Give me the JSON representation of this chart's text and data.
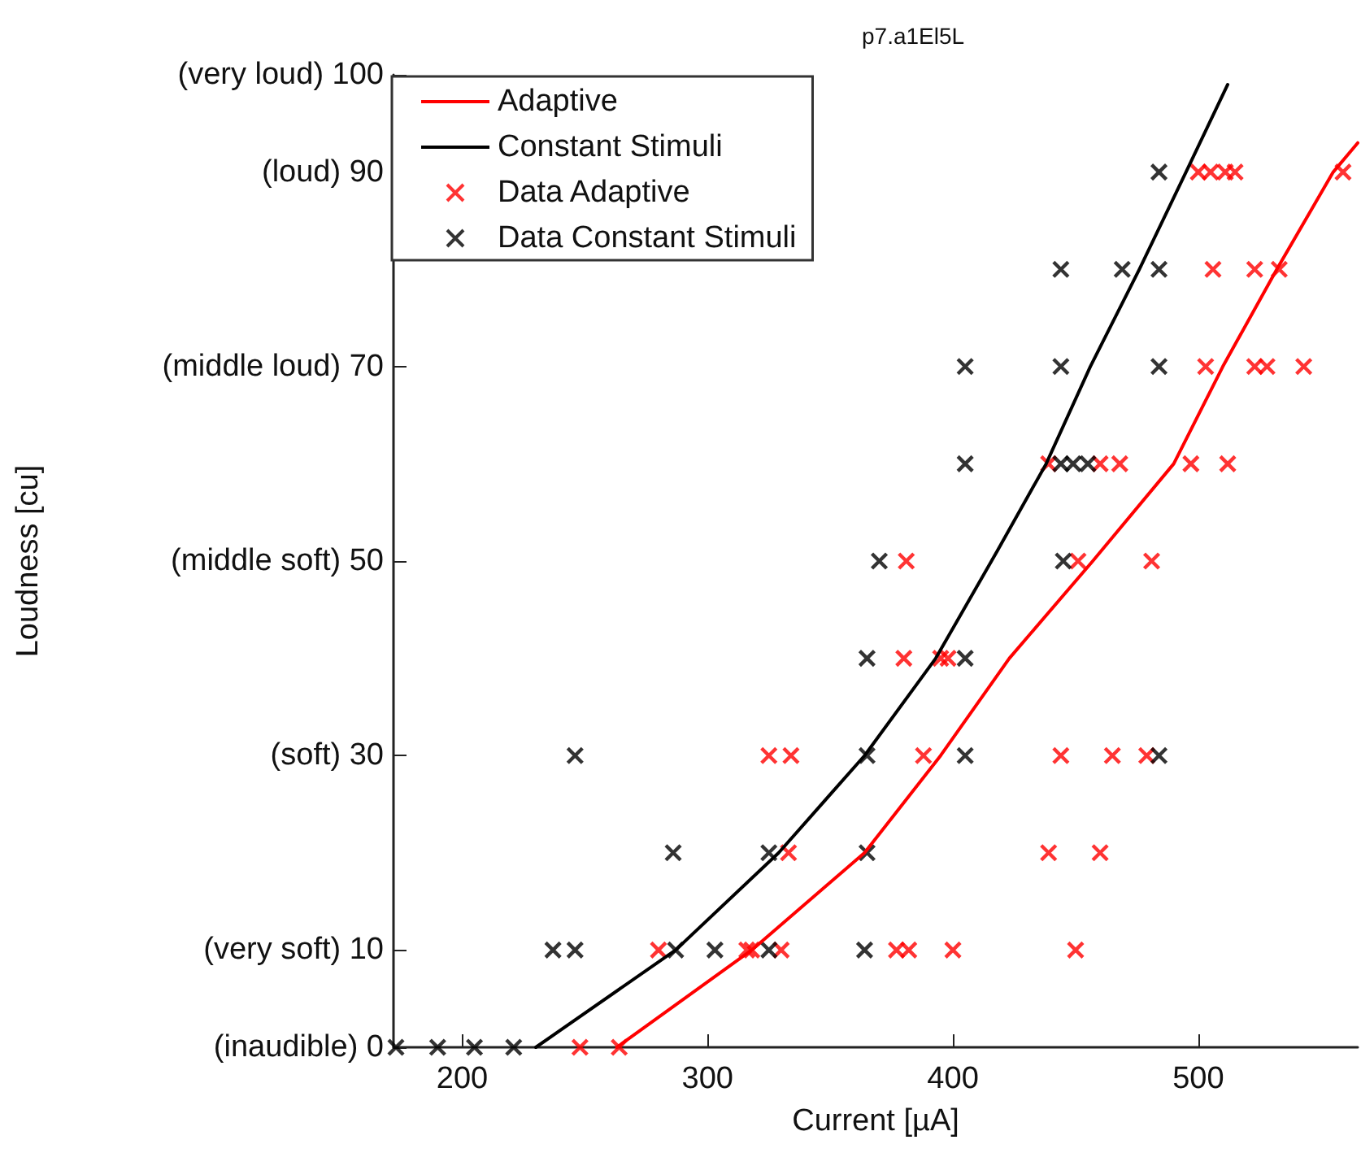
{
  "chart_data": {
    "type": "scatter",
    "title": "p7.a1El5L",
    "xlabel": "Current [µA]",
    "ylabel": "Loudness [cu]",
    "xlim": [
      172,
      565
    ],
    "xticks": [
      200,
      300,
      400,
      500
    ],
    "ylim": [
      0,
      100
    ],
    "yticks": [
      {
        "value": 0,
        "label": "(inaudible) 0"
      },
      {
        "value": 10,
        "label": "(very soft) 10"
      },
      {
        "value": 30,
        "label": "(soft) 30"
      },
      {
        "value": 50,
        "label": "(middle soft) 50"
      },
      {
        "value": 70,
        "label": "(middle loud) 70"
      },
      {
        "value": 90,
        "label": "(loud) 90"
      },
      {
        "value": 100,
        "label": "(very loud) 100"
      }
    ],
    "legend": "top left",
    "grid": false,
    "series": [
      {
        "name": "Adaptive",
        "type": "line",
        "marker": "none",
        "color": "#ff0000",
        "x": [
          263,
          318,
          364,
          395,
          423,
          457,
          490,
          510,
          532,
          555,
          565
        ],
        "values": [
          0,
          10,
          20,
          30,
          40,
          50,
          60,
          70,
          80,
          90,
          93
        ]
      },
      {
        "name": "Constant Stimuli",
        "type": "line",
        "marker": "none",
        "color": "#000000",
        "x": [
          230,
          287,
          329,
          364,
          393,
          418,
          438,
          456,
          476,
          495,
          512
        ],
        "values": [
          0,
          10,
          20,
          30,
          40,
          51,
          60,
          70,
          80,
          90,
          99
        ]
      },
      {
        "name": "Data Adaptive",
        "marker": "cross",
        "color": "#ff0000",
        "x": [
          248,
          264,
          280,
          316,
          318,
          330,
          377,
          382,
          400,
          450,
          333,
          439,
          460,
          325,
          334,
          388,
          444,
          465,
          479,
          380,
          395,
          398,
          381,
          451,
          481,
          439,
          460,
          468,
          497,
          512,
          503,
          523,
          528,
          543,
          506,
          523,
          533,
          500,
          505,
          511,
          515,
          559
        ],
        "values": [
          0,
          0,
          10,
          10,
          10,
          10,
          10,
          10,
          10,
          10,
          20,
          20,
          20,
          30,
          30,
          30,
          30,
          30,
          30,
          40,
          40,
          40,
          50,
          50,
          50,
          60,
          60,
          60,
          60,
          60,
          70,
          70,
          70,
          70,
          80,
          80,
          80,
          90,
          90,
          90,
          90,
          90
        ]
      },
      {
        "name": "Data Constant Stimuli",
        "marker": "cross",
        "color": "#000000",
        "x": [
          173,
          190,
          205,
          221,
          237,
          246,
          287,
          303,
          325,
          364,
          286,
          325,
          365,
          246,
          365,
          405,
          484,
          365,
          405,
          370,
          445,
          405,
          444,
          449,
          455,
          405,
          444,
          484,
          444,
          469,
          484,
          484
        ],
        "values": [
          0,
          0,
          0,
          0,
          10,
          10,
          10,
          10,
          10,
          10,
          20,
          20,
          20,
          30,
          30,
          30,
          30,
          40,
          40,
          50,
          50,
          60,
          60,
          60,
          60,
          70,
          70,
          70,
          80,
          80,
          80,
          90
        ]
      }
    ]
  }
}
